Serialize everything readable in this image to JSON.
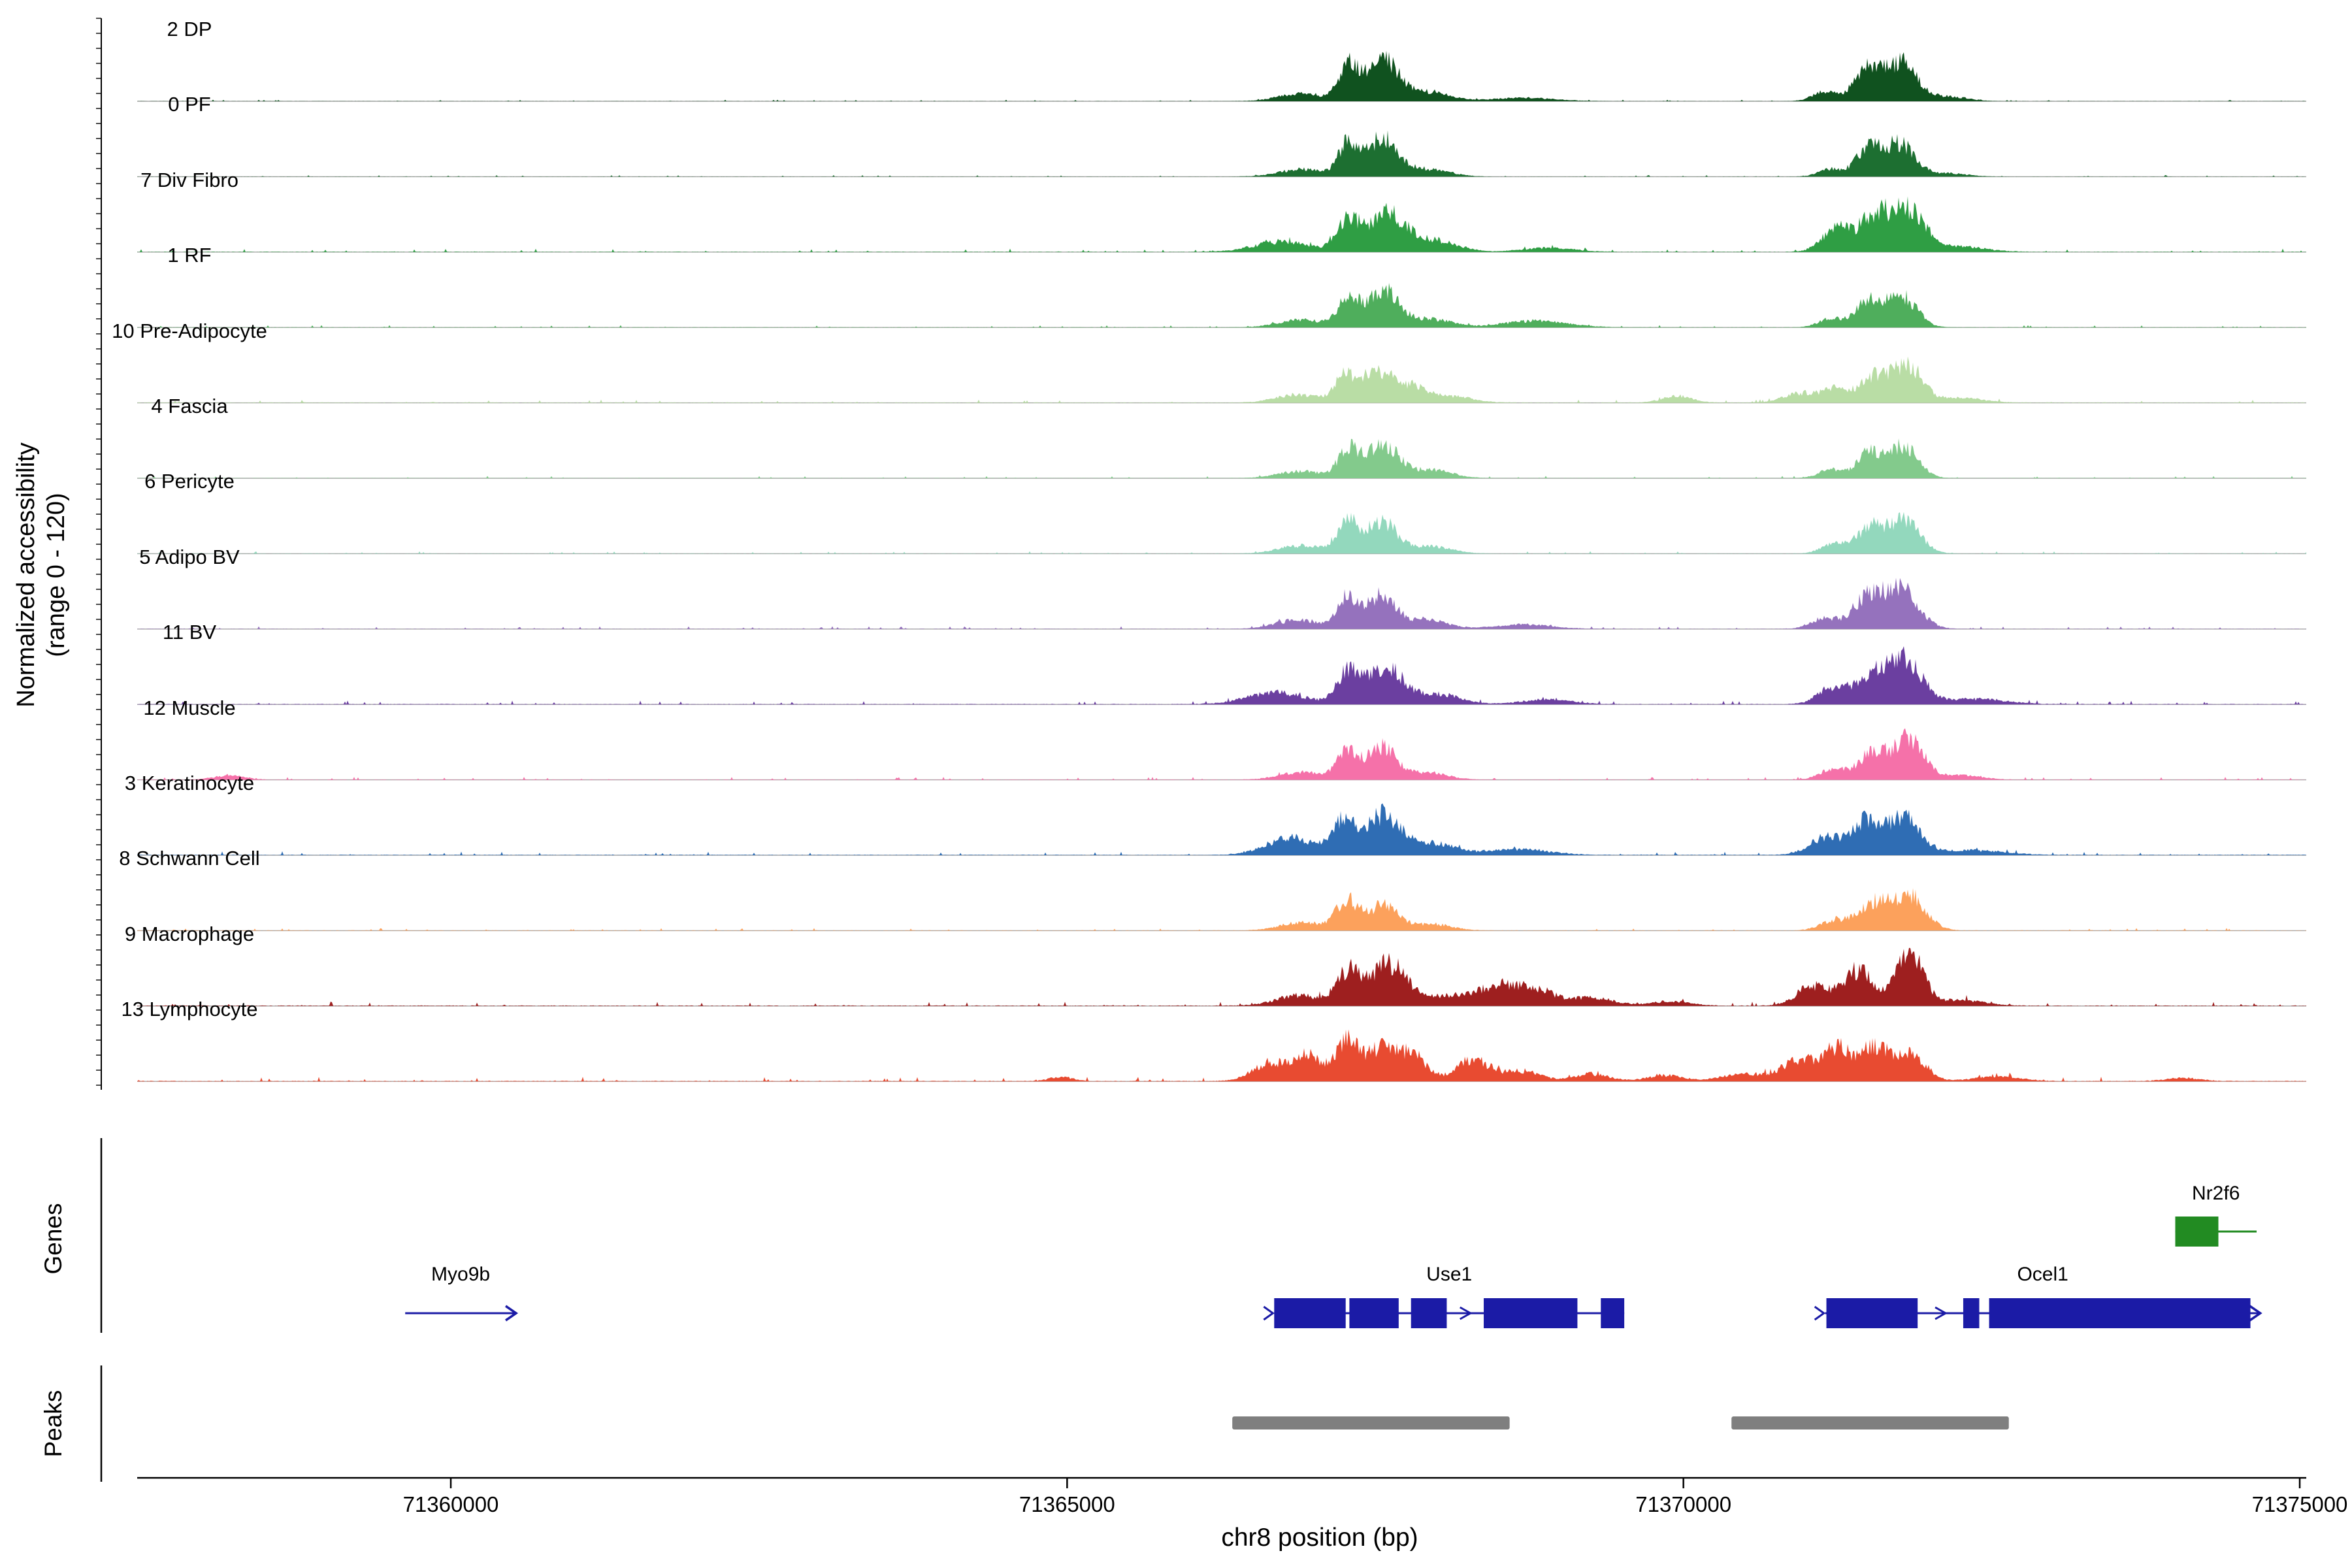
{
  "figure": {
    "ylabel": "Normalized accessibility\n(range 0 - 120)",
    "xlabel": "chr8 position (bp)",
    "genes_label": "Genes",
    "peaks_label": "Peaks"
  },
  "chart_data": {
    "type": "area",
    "xlabel": "chr8 position (bp)",
    "ylabel": "Normalized accessibility (range 0 - 120)",
    "x_axis": {
      "chrom": "chr8",
      "unit": "bp",
      "range_bp": [
        71357450,
        71375060
      ],
      "ticks": [
        71360000,
        71365000,
        71370000,
        71375000
      ],
      "tick_labels": [
        "71360000",
        "71365000",
        "71370000",
        "71375000"
      ]
    },
    "y_range_per_track": [
      0,
      120
    ],
    "tracks": [
      {
        "label": "2 DP",
        "color": "#10521f",
        "noise": 1.2,
        "peaks": [
          [
            71366900,
            180,
            12
          ],
          [
            71367280,
            80,
            50
          ],
          [
            71367560,
            130,
            66
          ],
          [
            71367950,
            160,
            14
          ],
          [
            71368700,
            250,
            5
          ],
          [
            71371150,
            100,
            14
          ],
          [
            71371480,
            100,
            48
          ],
          [
            71371760,
            130,
            60
          ],
          [
            71372150,
            150,
            7
          ]
        ]
      },
      {
        "label": "0 PF",
        "color": "#1d6f31",
        "noise": 1.2,
        "peaks": [
          [
            71366900,
            180,
            11
          ],
          [
            71367280,
            80,
            48
          ],
          [
            71367560,
            130,
            58
          ],
          [
            71367950,
            160,
            11
          ],
          [
            71371200,
            100,
            11
          ],
          [
            71371500,
            100,
            42
          ],
          [
            71371760,
            120,
            50
          ],
          [
            71372150,
            150,
            5
          ]
        ]
      },
      {
        "label": "7 Div Fibro",
        "color": "#2f9e44",
        "noise": 2.6,
        "peaks": [
          [
            71366750,
            220,
            16
          ],
          [
            71367280,
            90,
            46
          ],
          [
            71367600,
            150,
            58
          ],
          [
            71368000,
            180,
            16
          ],
          [
            71368900,
            200,
            6
          ],
          [
            71371250,
            120,
            36
          ],
          [
            71371550,
            110,
            50
          ],
          [
            71371820,
            140,
            64
          ],
          [
            71372250,
            200,
            8
          ]
        ]
      },
      {
        "label": "1 RF",
        "color": "#4fae5c",
        "noise": 1.8,
        "peaks": [
          [
            71366900,
            180,
            12
          ],
          [
            71367280,
            80,
            46
          ],
          [
            71367570,
            130,
            56
          ],
          [
            71367970,
            160,
            12
          ],
          [
            71368800,
            250,
            10
          ],
          [
            71371200,
            100,
            13
          ],
          [
            71371500,
            100,
            40
          ],
          [
            71371770,
            120,
            48
          ]
        ]
      },
      {
        "label": "10 Pre-Adipocyte",
        "color": "#b9dda5",
        "noise": 2.6,
        "peaks": [
          [
            71366880,
            180,
            12
          ],
          [
            71367250,
            80,
            38
          ],
          [
            71367500,
            110,
            48
          ],
          [
            71367780,
            140,
            26
          ],
          [
            71368150,
            150,
            9
          ],
          [
            71369950,
            120,
            10
          ],
          [
            71370950,
            140,
            14
          ],
          [
            71371250,
            110,
            20
          ],
          [
            71371550,
            110,
            38
          ],
          [
            71371820,
            120,
            56
          ],
          [
            71372250,
            180,
            7
          ]
        ]
      },
      {
        "label": "4 Fascia",
        "color": "#83ca8c",
        "noise": 1.8,
        "peaks": [
          [
            71366900,
            180,
            11
          ],
          [
            71367280,
            80,
            42
          ],
          [
            71367560,
            130,
            52
          ],
          [
            71367960,
            160,
            12
          ],
          [
            71371200,
            100,
            13
          ],
          [
            71371510,
            100,
            38
          ],
          [
            71371780,
            120,
            48
          ]
        ]
      },
      {
        "label": "6 Pericyte",
        "color": "#93d8bd",
        "noise": 1.8,
        "peaks": [
          [
            71366900,
            180,
            12
          ],
          [
            71367270,
            80,
            48
          ],
          [
            71367550,
            120,
            50
          ],
          [
            71367950,
            160,
            11
          ],
          [
            71371220,
            100,
            14
          ],
          [
            71371520,
            110,
            40
          ],
          [
            71371800,
            120,
            50
          ]
        ]
      },
      {
        "label": "5 Adipo BV",
        "color": "#9572bd",
        "noise": 2.2,
        "peaks": [
          [
            71366880,
            180,
            14
          ],
          [
            71367270,
            80,
            46
          ],
          [
            71367550,
            120,
            52
          ],
          [
            71367930,
            160,
            13
          ],
          [
            71368700,
            220,
            7
          ],
          [
            71371150,
            110,
            17
          ],
          [
            71371480,
            110,
            44
          ],
          [
            71371760,
            140,
            60
          ]
        ]
      },
      {
        "label": "11 BV",
        "color": "#6b3fa0",
        "noise": 3.0,
        "peaks": [
          [
            71366700,
            230,
            18
          ],
          [
            71367280,
            90,
            48
          ],
          [
            71367580,
            140,
            56
          ],
          [
            71368000,
            180,
            16
          ],
          [
            71368900,
            200,
            7
          ],
          [
            71371220,
            120,
            26
          ],
          [
            71371540,
            120,
            46
          ],
          [
            71371810,
            130,
            64
          ],
          [
            71372350,
            250,
            8
          ]
        ]
      },
      {
        "label": "12 Muscle",
        "color": "#f571a9",
        "noise": 2.2,
        "peaks": [
          [
            71358200,
            120,
            6
          ],
          [
            71366900,
            170,
            12
          ],
          [
            71367270,
            80,
            42
          ],
          [
            71367550,
            120,
            50
          ],
          [
            71367930,
            150,
            11
          ],
          [
            71371220,
            110,
            16
          ],
          [
            71371540,
            110,
            42
          ],
          [
            71371830,
            120,
            60
          ],
          [
            71372250,
            160,
            7
          ]
        ]
      },
      {
        "label": "3 Keratinocyte",
        "color": "#2f6db4",
        "noise": 3.0,
        "peaks": [
          [
            71366820,
            200,
            26
          ],
          [
            71367250,
            90,
            50
          ],
          [
            71367560,
            140,
            60
          ],
          [
            71367960,
            180,
            18
          ],
          [
            71368650,
            250,
            9
          ],
          [
            71371150,
            130,
            26
          ],
          [
            71371480,
            120,
            50
          ],
          [
            71371790,
            130,
            56
          ],
          [
            71372350,
            250,
            7
          ]
        ]
      },
      {
        "label": "8 Schwann Cell",
        "color": "#fca15c",
        "noise": 2.0,
        "peaks": [
          [
            71366900,
            170,
            12
          ],
          [
            71367270,
            90,
            44
          ],
          [
            71367560,
            120,
            38
          ],
          [
            71367950,
            160,
            10
          ],
          [
            71371220,
            110,
            15
          ],
          [
            71371540,
            120,
            40
          ],
          [
            71371830,
            130,
            54
          ]
        ]
      },
      {
        "label": "9 Macrophage",
        "color": "#9e1f1f",
        "noise": 3.4,
        "peaks": [
          [
            71366880,
            180,
            16
          ],
          [
            71367290,
            100,
            52
          ],
          [
            71367610,
            140,
            64
          ],
          [
            71368050,
            180,
            14
          ],
          [
            71368480,
            160,
            28
          ],
          [
            71368800,
            150,
            24
          ],
          [
            71369250,
            180,
            12
          ],
          [
            71369900,
            150,
            7
          ],
          [
            71371050,
            130,
            30
          ],
          [
            71371420,
            120,
            54
          ],
          [
            71371830,
            110,
            84
          ],
          [
            71372250,
            180,
            9
          ]
        ]
      },
      {
        "label": "13 Lymphocyte",
        "color": "#e84b31",
        "noise": 3.6,
        "peaks": [
          [
            71364950,
            90,
            7
          ],
          [
            71366650,
            140,
            28
          ],
          [
            71366950,
            110,
            38
          ],
          [
            71367270,
            90,
            60
          ],
          [
            71367540,
            120,
            48
          ],
          [
            71367800,
            110,
            40
          ],
          [
            71368300,
            140,
            32
          ],
          [
            71368700,
            140,
            15
          ],
          [
            71369250,
            140,
            11
          ],
          [
            71369850,
            140,
            9
          ],
          [
            71370500,
            180,
            11
          ],
          [
            71370950,
            140,
            32
          ],
          [
            71371250,
            110,
            46
          ],
          [
            71371550,
            120,
            50
          ],
          [
            71371850,
            120,
            38
          ],
          [
            71372550,
            180,
            7
          ],
          [
            71374050,
            130,
            5
          ]
        ]
      }
    ],
    "genes": [
      {
        "name": "Myo9b",
        "color": "#1b1ba6",
        "row": "main",
        "start": 71359630,
        "end": 71360530,
        "exons": [],
        "start_arrow": false,
        "end_arrow": true
      },
      {
        "name": "Use1",
        "color": "#1b1ba6",
        "row": "main",
        "start": 71366680,
        "end": 71369520,
        "exons": [
          [
            71366680,
            71367260
          ],
          [
            71367290,
            71367690
          ],
          [
            71367790,
            71368080
          ],
          [
            71368380,
            71369140
          ],
          [
            71369330,
            71369520
          ]
        ],
        "start_arrow": true,
        "end_arrow": false
      },
      {
        "name": "Ocel1",
        "color": "#1b1ba6",
        "row": "main",
        "start": 71371150,
        "end": 71374680,
        "exons": [
          [
            71371160,
            71371900
          ],
          [
            71372270,
            71372400
          ],
          [
            71372480,
            71374600
          ]
        ],
        "start_arrow": true,
        "end_arrow": true
      },
      {
        "name": "Nr2f6",
        "color": "#228b22",
        "row": "top",
        "start": 71373990,
        "end": 71374650,
        "exons": [
          [
            71373990,
            71374340
          ]
        ],
        "start_arrow": false,
        "end_arrow": false
      }
    ],
    "peak_bars": {
      "color": "#7f7f7f",
      "regions": [
        [
          71366340,
          71368590
        ],
        [
          71370390,
          71372640
        ]
      ]
    }
  }
}
